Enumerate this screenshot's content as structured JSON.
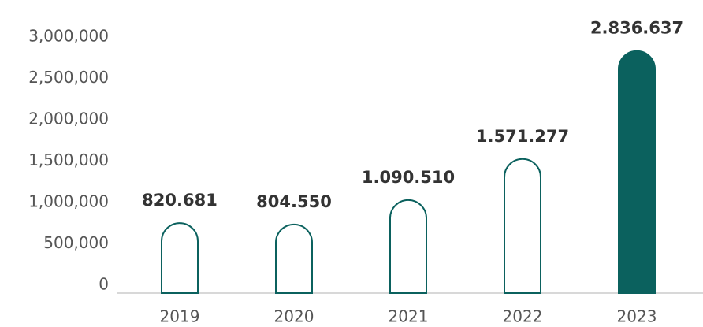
{
  "chart_data": {
    "type": "bar",
    "categories": [
      "2019",
      "2020",
      "2021",
      "2022",
      "2023"
    ],
    "values": [
      820681,
      804550,
      1090510,
      1571277,
      2836637
    ],
    "value_labels": [
      "820.681",
      "804.550",
      "1.090.510",
      "1.571.277",
      "2.836.637"
    ],
    "color": "#0b615e",
    "fills": [
      "#ffffff",
      "#ffffff",
      "#ffffff",
      "#ffffff",
      "#0b615e"
    ],
    "ylim": [
      0,
      3000000
    ],
    "yticks": [
      0,
      {
        "value": 500000,
        "label": "500,000"
      },
      {
        "value": 1000000,
        "label": "1,000,000"
      },
      {
        "value": 1500000,
        "label": "1,500,000"
      },
      {
        "value": 2000000,
        "label": "2,000,000"
      },
      {
        "value": 2500000,
        "label": "2,500,000"
      },
      {
        "value": 3000000,
        "label": "3,000,000"
      }
    ],
    "grid": false
  }
}
